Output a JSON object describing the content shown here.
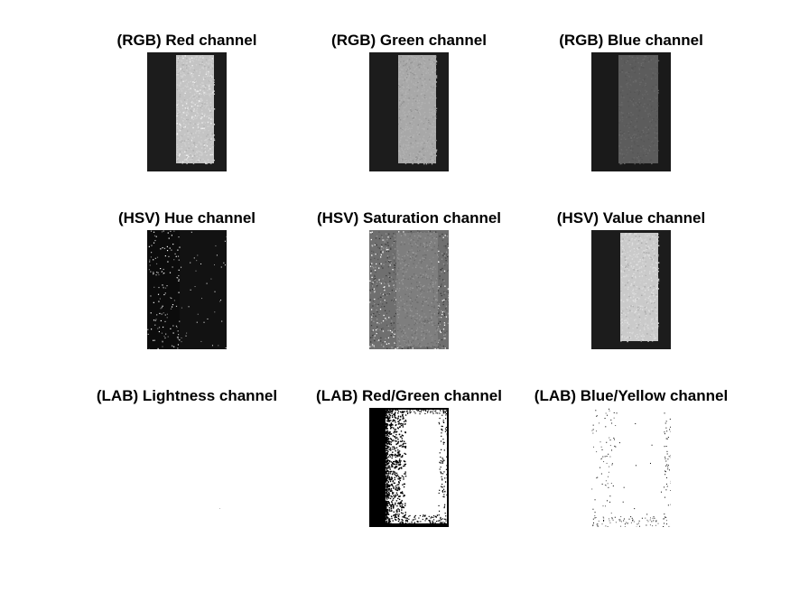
{
  "figure": {
    "panels": [
      {
        "title": "(RGB) Red channel",
        "style": "rgb-red"
      },
      {
        "title": "(RGB) Green channel",
        "style": "rgb-green"
      },
      {
        "title": "(RGB) Blue channel",
        "style": "rgb-blue"
      },
      {
        "title": "(HSV) Hue channel",
        "style": "hsv-hue"
      },
      {
        "title": "(HSV) Saturation channel",
        "style": "hsv-sat"
      },
      {
        "title": "(HSV) Value channel",
        "style": "hsv-val"
      },
      {
        "title": "(LAB) Lightness channel",
        "style": "lab-l"
      },
      {
        "title": "(LAB) Red/Green channel",
        "style": "lab-a"
      },
      {
        "title": "(LAB) Blue/Yellow channel",
        "style": "lab-b"
      }
    ]
  }
}
